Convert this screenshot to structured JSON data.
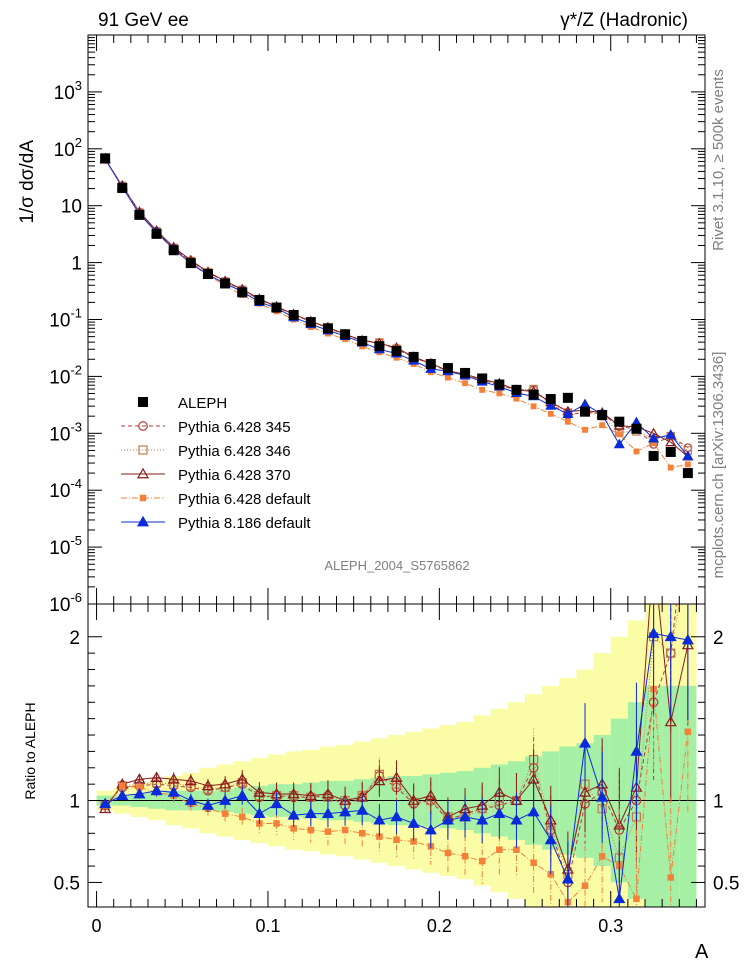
{
  "header": {
    "left": "91 GeV ee",
    "right": "γ*/Z (Hadronic)"
  },
  "side_labels": {
    "rivet": "Rivet 3.1.10, ≥ 500k events",
    "mcplots": "mcplots.cern.ch [arXiv:1306.3436]"
  },
  "watermark": "ALEPH_2004_S5765862",
  "colors": {
    "aleph": "#000000",
    "p345": "#b33a3a",
    "p346": "#c07a4a",
    "p370": "#8b1a1a",
    "p6def": "#f4813a",
    "p8def": "#0a2bd9",
    "band_inner": "#a6f0a6",
    "band_outer": "#fbfca6"
  },
  "chart_data": [
    {
      "type": "scatter",
      "panel": "main",
      "ylabel": "1/σ  dσ/dA",
      "yscale": "log",
      "ylim": [
        1e-06,
        10000
      ],
      "xlim": [
        -0.005,
        0.355
      ],
      "x": [
        0.005,
        0.015,
        0.025,
        0.035,
        0.045,
        0.055,
        0.065,
        0.075,
        0.085,
        0.095,
        0.105,
        0.115,
        0.125,
        0.135,
        0.145,
        0.155,
        0.165,
        0.175,
        0.185,
        0.195,
        0.205,
        0.215,
        0.225,
        0.235,
        0.245,
        0.255,
        0.265,
        0.275,
        0.285,
        0.295,
        0.305,
        0.315,
        0.325,
        0.335,
        0.345
      ],
      "legend": [
        "ALEPH",
        "Pythia 6.428 345",
        "Pythia 6.428 346",
        "Pythia 6.428 370",
        "Pythia 6.428 default",
        "Pythia 8.186 default"
      ],
      "ref": [
        68,
        20.5,
        6.9,
        3.2,
        1.65,
        0.98,
        0.63,
        0.43,
        0.3,
        0.22,
        0.162,
        0.12,
        0.09,
        0.07,
        0.055,
        0.042,
        0.034,
        0.028,
        0.022,
        0.0165,
        0.014,
        0.0115,
        0.0092,
        0.0072,
        0.0058,
        0.0048,
        0.004,
        0.0042,
        0.0024,
        0.0021,
        0.0016,
        0.0012,
        0.0004,
        0.00047,
        0.0002
      ],
      "ratios": {
        "Pythia 6.428 345": [
          0.97,
          1.08,
          1.09,
          1.1,
          1.09,
          1.08,
          1.06,
          1.08,
          1.1,
          1.02,
          1.03,
          1.02,
          1.02,
          1.03,
          0.97,
          1.02,
          1.15,
          1.08,
          0.98,
          1.0,
          0.88,
          0.92,
          0.95,
          0.97,
          1.0,
          1.2,
          0.82,
          0.5,
          0.98,
          1.05,
          0.82,
          1.0,
          1.6,
          1.9,
          2.8
        ],
        "Pythia 6.428 346": [
          0.97,
          1.09,
          1.1,
          1.11,
          1.1,
          1.09,
          1.07,
          1.08,
          1.11,
          1.03,
          1.03,
          1.03,
          1.02,
          1.02,
          1.0,
          1.03,
          1.16,
          1.1,
          0.99,
          1.0,
          0.9,
          0.9,
          0.95,
          1.0,
          1.0,
          1.25,
          0.85,
          0.55,
          1.1,
          0.95,
          0.65,
          0.9,
          2.0,
          1.9,
          2.5
        ],
        "Pythia 6.428 370": [
          0.95,
          1.1,
          1.13,
          1.14,
          1.13,
          1.12,
          1.09,
          1.1,
          1.13,
          1.05,
          1.04,
          1.04,
          1.03,
          1.04,
          1.0,
          1.02,
          1.12,
          1.14,
          1.0,
          1.03,
          0.9,
          0.95,
          0.97,
          1.05,
          1.0,
          1.13,
          0.88,
          0.58,
          1.05,
          1.1,
          0.85,
          1.08,
          2.5,
          1.48,
          1.95
        ],
        "Pythia 6.428 default": [
          0.97,
          1.09,
          1.08,
          1.05,
          1.03,
          0.98,
          0.95,
          0.92,
          0.9,
          0.86,
          0.86,
          0.83,
          0.82,
          0.81,
          0.82,
          0.8,
          0.78,
          0.76,
          0.75,
          0.72,
          0.68,
          0.66,
          0.63,
          0.7,
          0.7,
          0.62,
          0.55,
          0.38,
          0.48,
          0.66,
          0.6,
          0.4,
          1.68,
          0.53,
          1.42
        ],
        "Pythia 8.186 default": [
          0.98,
          1.03,
          1.04,
          1.06,
          1.05,
          1.0,
          0.97,
          1.0,
          1.03,
          0.92,
          0.98,
          0.91,
          0.92,
          0.92,
          0.93,
          0.94,
          0.88,
          0.9,
          0.86,
          0.82,
          0.88,
          0.9,
          0.88,
          0.92,
          0.88,
          0.93,
          0.76,
          0.52,
          1.35,
          1.02,
          0.4,
          1.3,
          2.02,
          2.0,
          1.98
        ]
      }
    },
    {
      "type": "scatter",
      "panel": "ratio",
      "ylabel": "Ratio to ALEPH",
      "xlabel": "A",
      "ylim": [
        0.35,
        2.2
      ],
      "yticks": [
        0.5,
        1,
        2
      ],
      "xticks": [
        0,
        0.1,
        0.2,
        0.3
      ],
      "band_inner": [
        0.03,
        0.03,
        0.04,
        0.05,
        0.06,
        0.06,
        0.06,
        0.07,
        0.08,
        0.09,
        0.1,
        0.1,
        0.11,
        0.12,
        0.12,
        0.13,
        0.14,
        0.15,
        0.15,
        0.16,
        0.17,
        0.18,
        0.2,
        0.22,
        0.24,
        0.27,
        0.3,
        0.33,
        0.35,
        0.4,
        0.5,
        0.6,
        0.7,
        0.7,
        0.7
      ],
      "band_outer": [
        0.06,
        0.08,
        0.1,
        0.12,
        0.15,
        0.17,
        0.2,
        0.22,
        0.24,
        0.26,
        0.28,
        0.3,
        0.31,
        0.33,
        0.34,
        0.36,
        0.38,
        0.4,
        0.42,
        0.44,
        0.46,
        0.48,
        0.52,
        0.56,
        0.6,
        0.65,
        0.7,
        0.75,
        0.8,
        0.9,
        1.0,
        1.1,
        1.2,
        1.2,
        1.2
      ]
    }
  ]
}
